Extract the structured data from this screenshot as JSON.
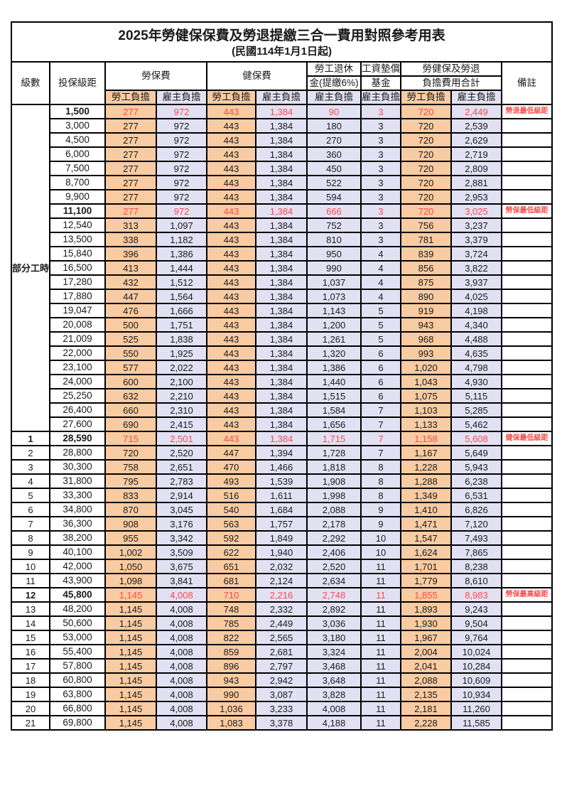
{
  "title": "2025年勞健保保費及勞退提繳三合一費用對照參考用表",
  "subtitle": "(民國114年1月1日起)",
  "colors": {
    "employee_bg": "#F8CBA2",
    "employer_bg": "#E2E1F4",
    "highlight_red": "#FB4A4A",
    "border": "#000000"
  },
  "header": {
    "level": "級數",
    "bracket": "投保級距",
    "labor_insurance": "勞保費",
    "health_insurance": "健保費",
    "pension_line1": "勞工退休",
    "pension_line2": "金(提繳6%)",
    "wage_fund_line1": "工資墊償",
    "wage_fund_line2": "基金",
    "total_line1": "勞健保及勞退",
    "total_line2": "負擔費用合計",
    "remark": "備註",
    "employee_share": "勞工負擔",
    "employer_share": "雇主負擔"
  },
  "part_time_label": "部分工時",
  "rows": [
    {
      "lv": "部分工時",
      "span": 23,
      "b": "1,500",
      "v": [
        "277",
        "972",
        "443",
        "1,384",
        "90",
        "3",
        "720",
        "2,449"
      ],
      "r": "勞退最低級距",
      "hl": true
    },
    {
      "lv": null,
      "b": "3,000",
      "v": [
        "277",
        "972",
        "443",
        "1,384",
        "180",
        "3",
        "720",
        "2,539"
      ],
      "r": "",
      "hl": false
    },
    {
      "lv": null,
      "b": "4,500",
      "v": [
        "277",
        "972",
        "443",
        "1,384",
        "270",
        "3",
        "720",
        "2,629"
      ],
      "r": "",
      "hl": false
    },
    {
      "lv": null,
      "b": "6,000",
      "v": [
        "277",
        "972",
        "443",
        "1,384",
        "360",
        "3",
        "720",
        "2,719"
      ],
      "r": "",
      "hl": false
    },
    {
      "lv": null,
      "b": "7,500",
      "v": [
        "277",
        "972",
        "443",
        "1,384",
        "450",
        "3",
        "720",
        "2,809"
      ],
      "r": "",
      "hl": false
    },
    {
      "lv": null,
      "b": "8,700",
      "v": [
        "277",
        "972",
        "443",
        "1,384",
        "522",
        "3",
        "720",
        "2,881"
      ],
      "r": "",
      "hl": false
    },
    {
      "lv": null,
      "b": "9,900",
      "v": [
        "277",
        "972",
        "443",
        "1,384",
        "594",
        "3",
        "720",
        "2,953"
      ],
      "r": "",
      "hl": false
    },
    {
      "lv": null,
      "b": "11,100",
      "v": [
        "277",
        "972",
        "443",
        "1,384",
        "666",
        "3",
        "720",
        "3,025"
      ],
      "r": "勞保最低級距",
      "hl": true
    },
    {
      "lv": null,
      "b": "12,540",
      "v": [
        "313",
        "1,097",
        "443",
        "1,384",
        "752",
        "3",
        "756",
        "3,237"
      ],
      "r": "",
      "hl": false
    },
    {
      "lv": null,
      "b": "13,500",
      "v": [
        "338",
        "1,182",
        "443",
        "1,384",
        "810",
        "3",
        "781",
        "3,379"
      ],
      "r": "",
      "hl": false
    },
    {
      "lv": null,
      "b": "15,840",
      "v": [
        "396",
        "1,386",
        "443",
        "1,384",
        "950",
        "4",
        "839",
        "3,724"
      ],
      "r": "",
      "hl": false
    },
    {
      "lv": null,
      "b": "16,500",
      "v": [
        "413",
        "1,444",
        "443",
        "1,384",
        "990",
        "4",
        "856",
        "3,822"
      ],
      "r": "",
      "hl": false
    },
    {
      "lv": null,
      "b": "17,280",
      "v": [
        "432",
        "1,512",
        "443",
        "1,384",
        "1,037",
        "4",
        "875",
        "3,937"
      ],
      "r": "",
      "hl": false
    },
    {
      "lv": null,
      "b": "17,880",
      "v": [
        "447",
        "1,564",
        "443",
        "1,384",
        "1,073",
        "4",
        "890",
        "4,025"
      ],
      "r": "",
      "hl": false
    },
    {
      "lv": null,
      "b": "19,047",
      "v": [
        "476",
        "1,666",
        "443",
        "1,384",
        "1,143",
        "5",
        "919",
        "4,198"
      ],
      "r": "",
      "hl": false
    },
    {
      "lv": null,
      "b": "20,008",
      "v": [
        "500",
        "1,751",
        "443",
        "1,384",
        "1,200",
        "5",
        "943",
        "4,340"
      ],
      "r": "",
      "hl": false
    },
    {
      "lv": null,
      "b": "21,009",
      "v": [
        "525",
        "1,838",
        "443",
        "1,384",
        "1,261",
        "5",
        "968",
        "4,488"
      ],
      "r": "",
      "hl": false
    },
    {
      "lv": null,
      "b": "22,000",
      "v": [
        "550",
        "1,925",
        "443",
        "1,384",
        "1,320",
        "6",
        "993",
        "4,635"
      ],
      "r": "",
      "hl": false
    },
    {
      "lv": null,
      "b": "23,100",
      "v": [
        "577",
        "2,022",
        "443",
        "1,384",
        "1,386",
        "6",
        "1,020",
        "4,798"
      ],
      "r": "",
      "hl": false
    },
    {
      "lv": null,
      "b": "24,000",
      "v": [
        "600",
        "2,100",
        "443",
        "1,384",
        "1,440",
        "6",
        "1,043",
        "4,930"
      ],
      "r": "",
      "hl": false
    },
    {
      "lv": null,
      "b": "25,250",
      "v": [
        "632",
        "2,210",
        "443",
        "1,384",
        "1,515",
        "6",
        "1,075",
        "5,115"
      ],
      "r": "",
      "hl": false
    },
    {
      "lv": null,
      "b": "26,400",
      "v": [
        "660",
        "2,310",
        "443",
        "1,384",
        "1,584",
        "7",
        "1,103",
        "5,285"
      ],
      "r": "",
      "hl": false
    },
    {
      "lv": null,
      "b": "27,600",
      "v": [
        "690",
        "2,415",
        "443",
        "1,384",
        "1,656",
        "7",
        "1,133",
        "5,462"
      ],
      "r": "",
      "hl": false
    },
    {
      "lv": "1",
      "b": "28,590",
      "v": [
        "715",
        "2,501",
        "443",
        "1,384",
        "1,715",
        "7",
        "1,158",
        "5,608"
      ],
      "r": "健保最低級距",
      "hl": true
    },
    {
      "lv": "2",
      "b": "28,800",
      "v": [
        "720",
        "2,520",
        "447",
        "1,394",
        "1,728",
        "7",
        "1,167",
        "5,649"
      ],
      "r": "",
      "hl": false
    },
    {
      "lv": "3",
      "b": "30,300",
      "v": [
        "758",
        "2,651",
        "470",
        "1,466",
        "1,818",
        "8",
        "1,228",
        "5,943"
      ],
      "r": "",
      "hl": false
    },
    {
      "lv": "4",
      "b": "31,800",
      "v": [
        "795",
        "2,783",
        "493",
        "1,539",
        "1,908",
        "8",
        "1,288",
        "6,238"
      ],
      "r": "",
      "hl": false
    },
    {
      "lv": "5",
      "b": "33,300",
      "v": [
        "833",
        "2,914",
        "516",
        "1,611",
        "1,998",
        "8",
        "1,349",
        "6,531"
      ],
      "r": "",
      "hl": false
    },
    {
      "lv": "6",
      "b": "34,800",
      "v": [
        "870",
        "3,045",
        "540",
        "1,684",
        "2,088",
        "9",
        "1,410",
        "6,826"
      ],
      "r": "",
      "hl": false
    },
    {
      "lv": "7",
      "b": "36,300",
      "v": [
        "908",
        "3,176",
        "563",
        "1,757",
        "2,178",
        "9",
        "1,471",
        "7,120"
      ],
      "r": "",
      "hl": false
    },
    {
      "lv": "8",
      "b": "38,200",
      "v": [
        "955",
        "3,342",
        "592",
        "1,849",
        "2,292",
        "10",
        "1,547",
        "7,493"
      ],
      "r": "",
      "hl": false
    },
    {
      "lv": "9",
      "b": "40,100",
      "v": [
        "1,002",
        "3,509",
        "622",
        "1,940",
        "2,406",
        "10",
        "1,624",
        "7,865"
      ],
      "r": "",
      "hl": false
    },
    {
      "lv": "10",
      "b": "42,000",
      "v": [
        "1,050",
        "3,675",
        "651",
        "2,032",
        "2,520",
        "11",
        "1,701",
        "8,238"
      ],
      "r": "",
      "hl": false
    },
    {
      "lv": "11",
      "b": "43,900",
      "v": [
        "1,098",
        "3,841",
        "681",
        "2,124",
        "2,634",
        "11",
        "1,779",
        "8,610"
      ],
      "r": "",
      "hl": false
    },
    {
      "lv": "12",
      "b": "45,800",
      "v": [
        "1,145",
        "4,008",
        "710",
        "2,216",
        "2,748",
        "11",
        "1,855",
        "8,983"
      ],
      "r": "勞保最高級距",
      "hl": true
    },
    {
      "lv": "13",
      "b": "48,200",
      "v": [
        "1,145",
        "4,008",
        "748",
        "2,332",
        "2,892",
        "11",
        "1,893",
        "9,243"
      ],
      "r": "",
      "hl": false
    },
    {
      "lv": "14",
      "b": "50,600",
      "v": [
        "1,145",
        "4,008",
        "785",
        "2,449",
        "3,036",
        "11",
        "1,930",
        "9,504"
      ],
      "r": "",
      "hl": false
    },
    {
      "lv": "15",
      "b": "53,000",
      "v": [
        "1,145",
        "4,008",
        "822",
        "2,565",
        "3,180",
        "11",
        "1,967",
        "9,764"
      ],
      "r": "",
      "hl": false
    },
    {
      "lv": "16",
      "b": "55,400",
      "v": [
        "1,145",
        "4,008",
        "859",
        "2,681",
        "3,324",
        "11",
        "2,004",
        "10,024"
      ],
      "r": "",
      "hl": false
    },
    {
      "lv": "17",
      "b": "57,800",
      "v": [
        "1,145",
        "4,008",
        "896",
        "2,797",
        "3,468",
        "11",
        "2,041",
        "10,284"
      ],
      "r": "",
      "hl": false
    },
    {
      "lv": "18",
      "b": "60,800",
      "v": [
        "1,145",
        "4,008",
        "943",
        "2,942",
        "3,648",
        "11",
        "2,088",
        "10,609"
      ],
      "r": "",
      "hl": false
    },
    {
      "lv": "19",
      "b": "63,800",
      "v": [
        "1,145",
        "4,008",
        "990",
        "3,087",
        "3,828",
        "11",
        "2,135",
        "10,934"
      ],
      "r": "",
      "hl": false
    },
    {
      "lv": "20",
      "b": "66,800",
      "v": [
        "1,145",
        "4,008",
        "1,036",
        "3,233",
        "4,008",
        "11",
        "2,181",
        "11,260"
      ],
      "r": "",
      "hl": false
    },
    {
      "lv": "21",
      "b": "69,800",
      "v": [
        "1,145",
        "4,008",
        "1,083",
        "3,378",
        "4,188",
        "11",
        "2,228",
        "11,585"
      ],
      "r": "",
      "hl": false
    }
  ]
}
